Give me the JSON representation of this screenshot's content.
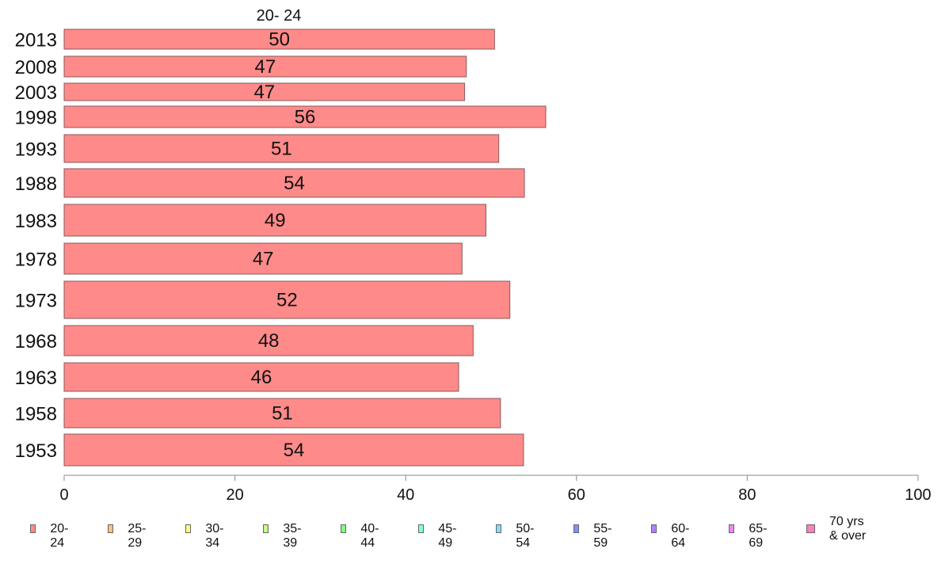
{
  "chart_data": {
    "type": "bar",
    "orientation": "horizontal",
    "title": "",
    "series_header": "20- 24",
    "categories": [
      "2013",
      "2008",
      "2003",
      "1998",
      "1993",
      "1988",
      "1983",
      "1978",
      "1973",
      "1968",
      "1963",
      "1958",
      "1953"
    ],
    "series": [
      {
        "name": "20- 24",
        "values": [
          50.4,
          47.1,
          46.9,
          56.4,
          50.9,
          53.9,
          49.4,
          46.6,
          52.2,
          47.9,
          46.2,
          51.1,
          53.8
        ],
        "labels": [
          "50",
          "47",
          "47",
          "56",
          "51",
          "54",
          "49",
          "47",
          "52",
          "48",
          "46",
          "51",
          "54"
        ]
      }
    ],
    "x_ticks": [
      "0",
      "20",
      "40",
      "60",
      "80",
      "100"
    ],
    "xlim": [
      0,
      100
    ],
    "grid": false,
    "legend_position": "bottom",
    "legend": [
      {
        "label": "20- 24",
        "color": "#ff8a8a"
      },
      {
        "label": "25- 29",
        "color": "#ffc080"
      },
      {
        "label": "30- 34",
        "color": "#ffff80"
      },
      {
        "label": "35- 39",
        "color": "#c0ff80"
      },
      {
        "label": "40- 44",
        "color": "#80ff80"
      },
      {
        "label": "45- 49",
        "color": "#80ffdf"
      },
      {
        "label": "50- 54",
        "color": "#80dfff"
      },
      {
        "label": "55- 59",
        "color": "#8090ff"
      },
      {
        "label": "60- 64",
        "color": "#b080ff"
      },
      {
        "label": "65- 69",
        "color": "#ff80ff"
      },
      {
        "label": "70 yrs\n& over",
        "color": "#ff80c0"
      }
    ],
    "bar_color": "#ff8a8a"
  }
}
